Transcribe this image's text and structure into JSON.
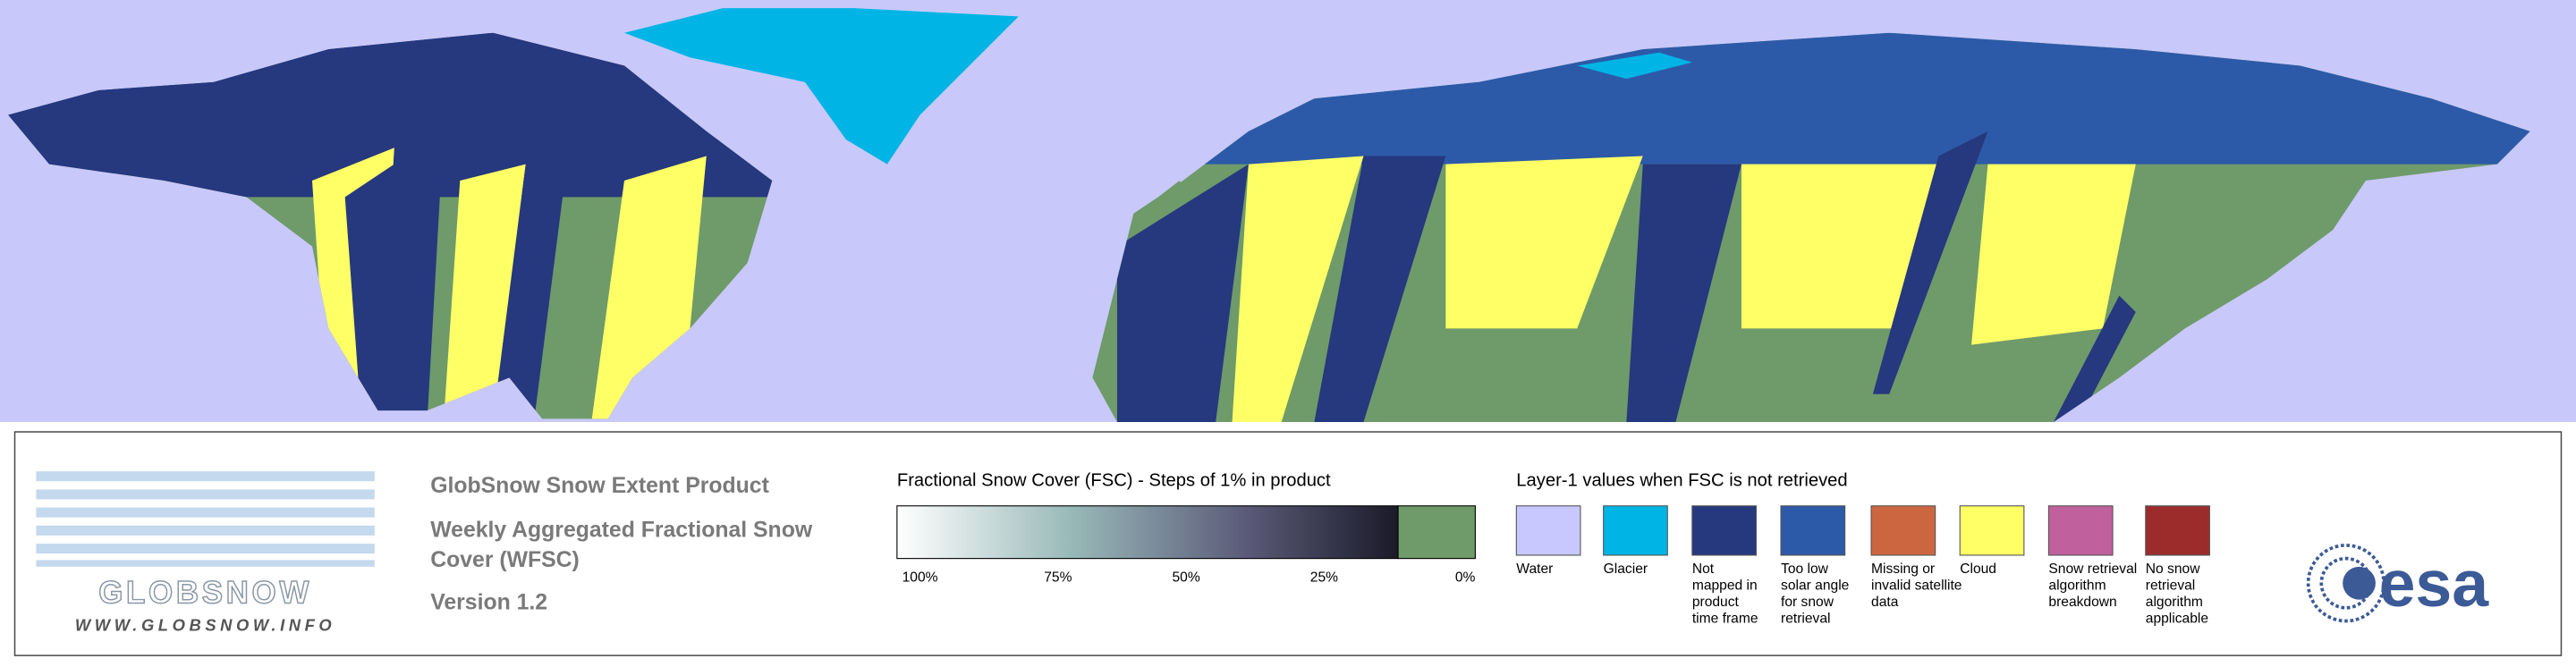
{
  "logo": {
    "name": "GLOBSNOW",
    "url": "WWW.GLOBSNOW.INFO"
  },
  "product": {
    "title": "GlobSnow Snow Extent Product",
    "subtitle_lines": [
      "Weekly Aggregated Fractional Snow",
      "Cover (WFSC)"
    ],
    "version": "Version 1.2"
  },
  "fsc_scale": {
    "title": "Fractional Snow Cover (FSC) - Steps of 1% in product",
    "ticks": [
      "100%",
      "75%",
      "50%",
      "25%",
      "0%"
    ]
  },
  "layer1": {
    "title": "Layer-1 values when FSC is not retrieved",
    "items": [
      {
        "color": "#c8c8ff",
        "label_lines": [
          "Water"
        ]
      },
      {
        "color": "#00b4e6",
        "label_lines": [
          "Glacier"
        ]
      },
      {
        "color": "#26387e",
        "label_lines": [
          "Not",
          "mapped in",
          "product",
          "time frame"
        ]
      },
      {
        "color": "#2c5aa8",
        "label_lines": [
          "Too low",
          "solar angle",
          "for snow",
          "retrieval"
        ]
      },
      {
        "color": "#cc6640",
        "label_lines": [
          "Missing or",
          "invalid satellite",
          "data"
        ]
      },
      {
        "color": "#ffff66",
        "label_lines": [
          "Cloud"
        ]
      },
      {
        "color": "#c0609c",
        "label_lines": [
          "Snow retrieval",
          "algorithm",
          "breakdown"
        ]
      },
      {
        "color": "#9c2c2c",
        "label_lines": [
          "No snow",
          "retrieval",
          "algorithm",
          "applicable"
        ]
      }
    ]
  },
  "agency": {
    "name": "esa"
  }
}
